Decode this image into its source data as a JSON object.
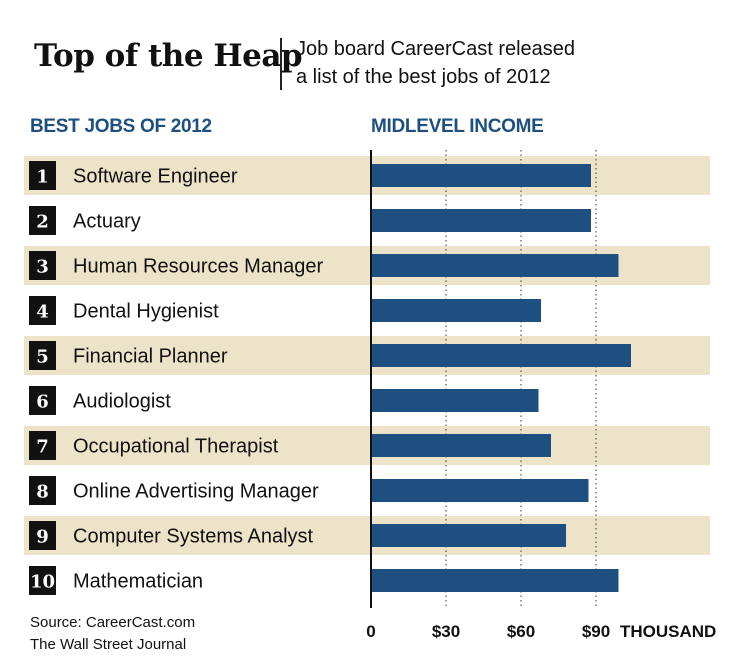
{
  "header": {
    "title": "Top of the Heap",
    "subtitle_line1": "Job board CareerCast released",
    "subtitle_line2": "a list of the best jobs of 2012"
  },
  "colors": {
    "bar": "#1d4f80",
    "band": "#ede3c9",
    "heading": "#1d4f80",
    "rank_box": "#111111",
    "grid": "#333333"
  },
  "chart_data": {
    "type": "bar",
    "orientation": "horizontal",
    "categories_header": "BEST JOBS OF 2012",
    "value_header": "MIDLEVEL INCOME",
    "ranks": [
      "1",
      "2",
      "3",
      "4",
      "5",
      "6",
      "7",
      "8",
      "9",
      "10"
    ],
    "categories": [
      "Software Engineer",
      "Actuary",
      "Human Resources Manager",
      "Dental Hygienist",
      "Financial Planner",
      "Audiologist",
      "Occupational Therapist",
      "Online Advertising Manager",
      "Computer Systems Analyst",
      "Mathematician"
    ],
    "values": [
      88,
      88,
      99,
      68,
      104,
      67,
      72,
      87,
      78,
      99
    ],
    "xlim": [
      0,
      135
    ],
    "xticks": [
      0,
      30,
      60,
      90
    ],
    "xtick_labels": [
      "0",
      "$30",
      "$60",
      "$90"
    ],
    "xunit_label": "THOUSAND",
    "gridlines": "dotted at 30, 60, 90",
    "legend": "none"
  },
  "footer": {
    "source": "Source: CareerCast.com",
    "credit": "The Wall Street Journal"
  }
}
